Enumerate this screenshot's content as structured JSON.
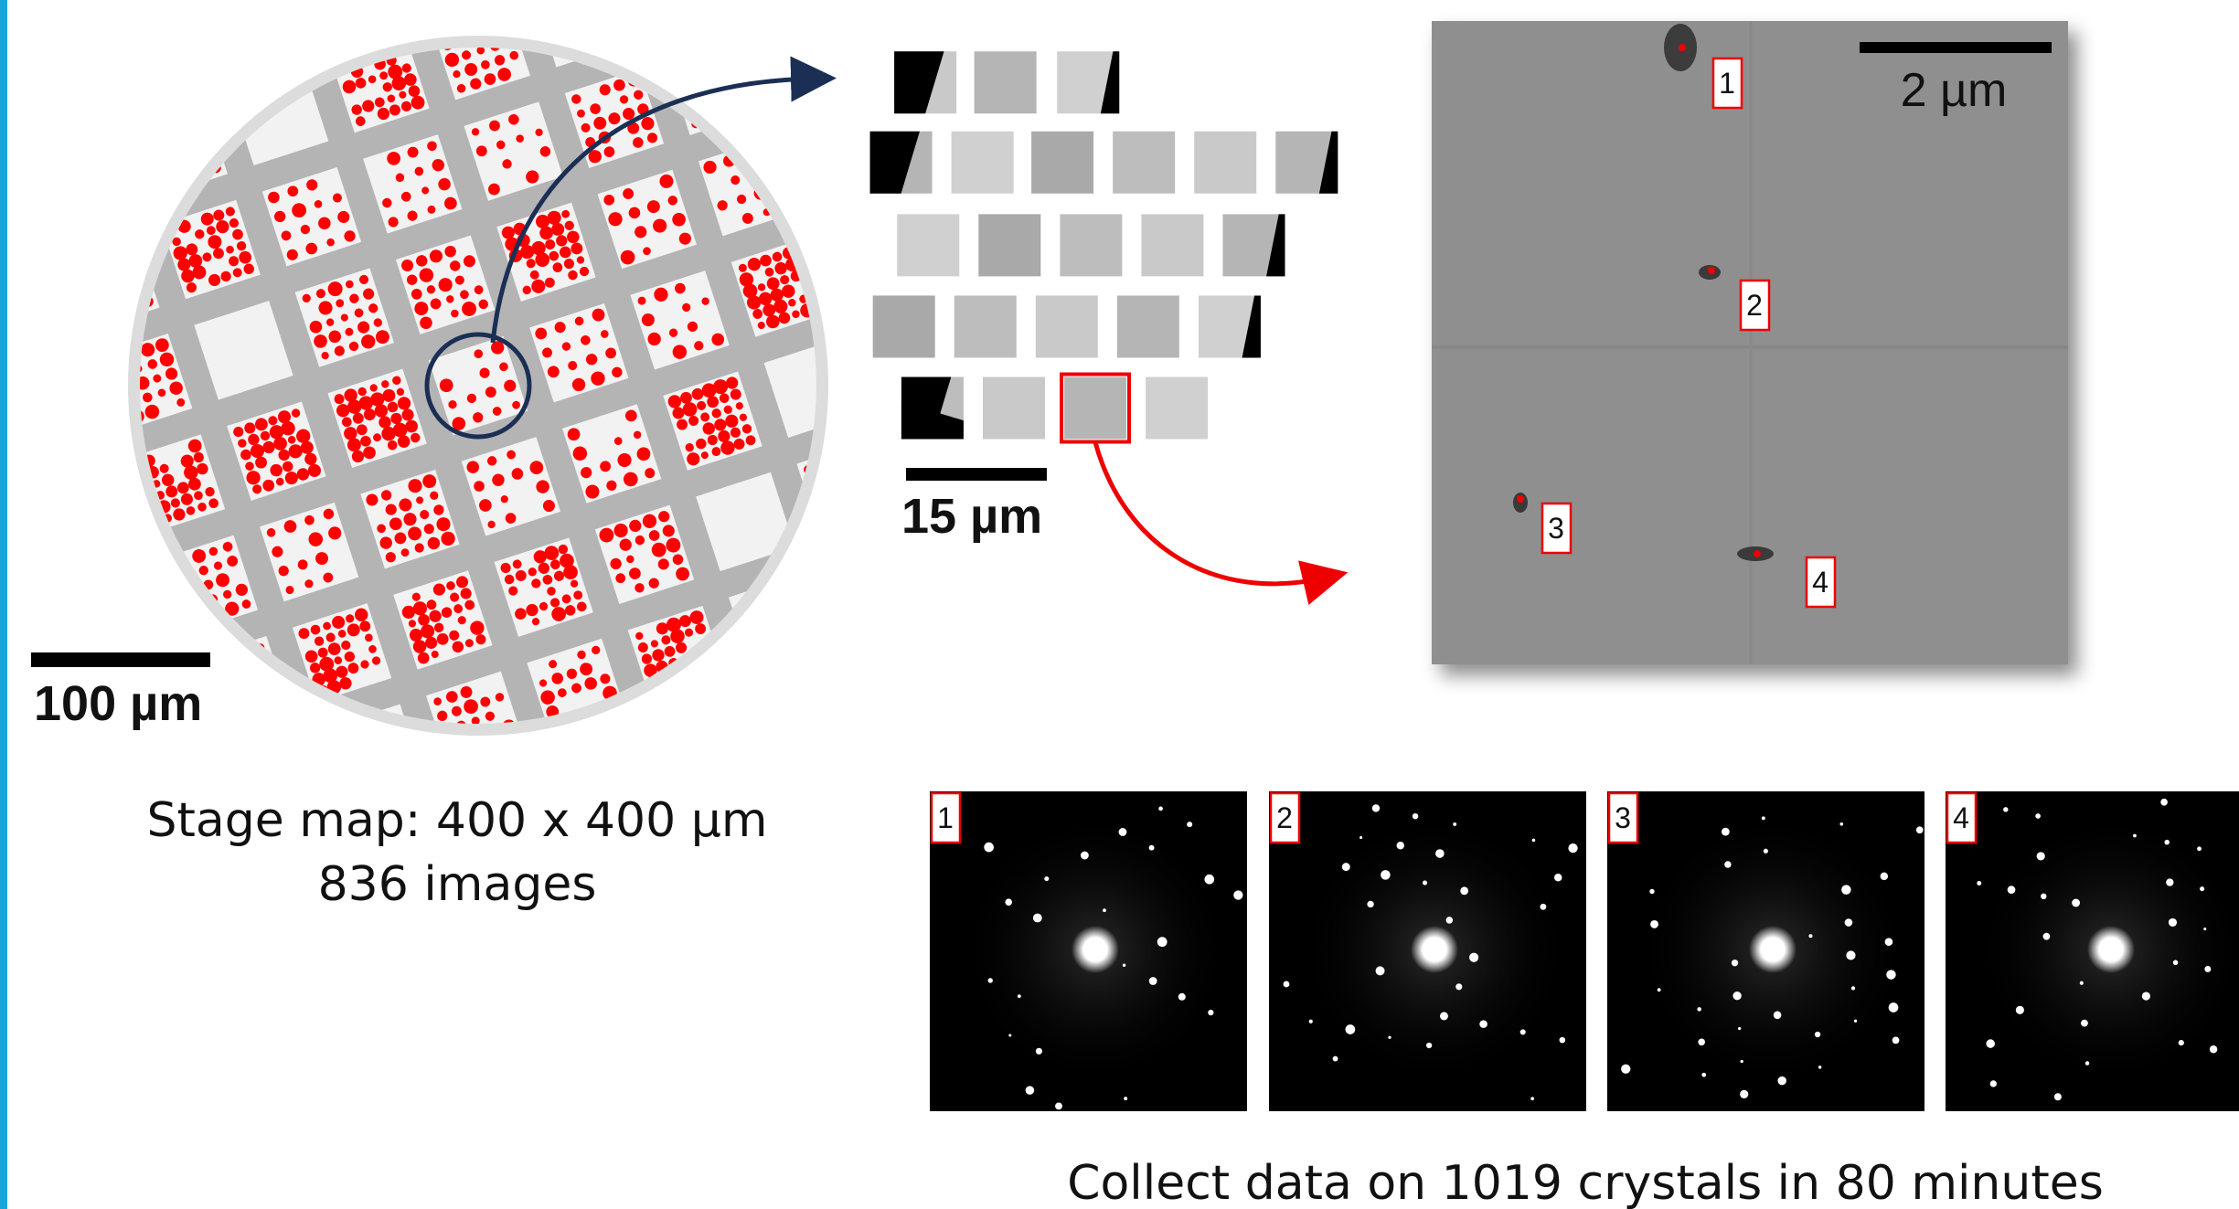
{
  "stage_map": {
    "scale_label": "100 µm",
    "caption": [
      "Stage map: 400 x 400 µm",
      "836 images"
    ]
  },
  "tiles": {
    "scale_label": "15 µm"
  },
  "micrograph": {
    "scale_label": "2 µm",
    "crystal_labels": [
      "1",
      "2",
      "3",
      "4"
    ]
  },
  "diffraction": {
    "panel_labels": [
      "1",
      "2",
      "3",
      "4"
    ],
    "caption": "Collect data on 1019 crystals in 80 minutes"
  }
}
